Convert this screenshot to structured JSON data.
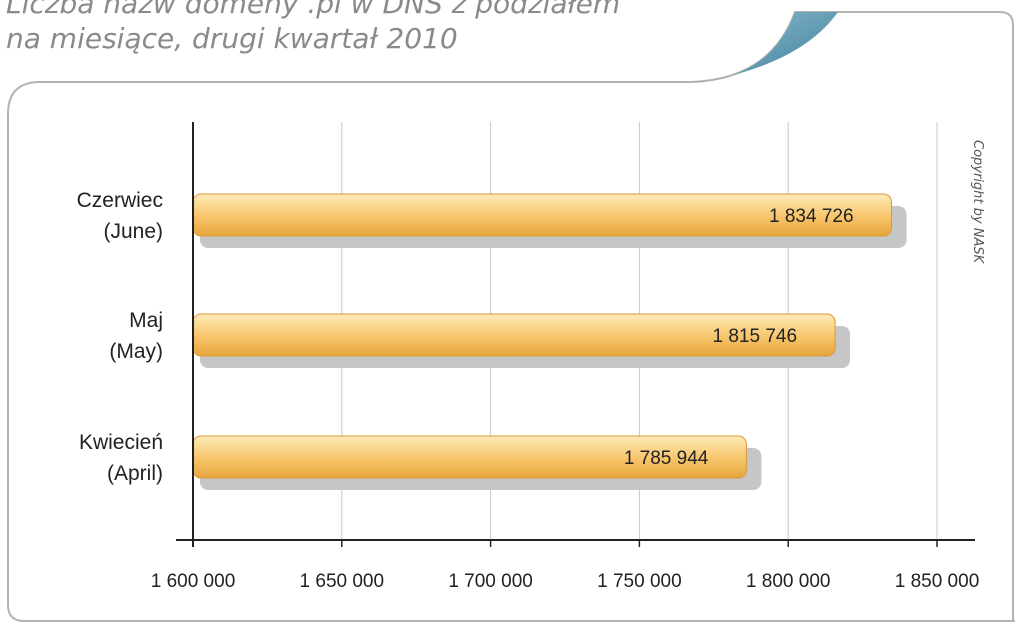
{
  "chart_data": {
    "type": "bar",
    "orientation": "horizontal",
    "title_lines": [
      "Liczba nazw domeny .pl w DNS z podziałem",
      "na miesiące, drugi kwartał 2010"
    ],
    "categories": [
      [
        "Czerwiec",
        "(June)"
      ],
      [
        "Maj",
        "(May)"
      ],
      [
        "Kwiecień",
        "(April)"
      ]
    ],
    "values": [
      1834726,
      1815746,
      1785944
    ],
    "value_labels": [
      "1 834 726",
      "1 815 746",
      "1 785 944"
    ],
    "xlim": [
      1600000,
      1850000
    ],
    "x_ticks": [
      1600000,
      1650000,
      1700000,
      1750000,
      1800000,
      1850000
    ],
    "x_tick_labels": [
      "1 600 000",
      "1 650 000",
      "1 700 000",
      "1 750 000",
      "1 800 000",
      "1 850 000"
    ],
    "grid": "vertical",
    "bar_color": "#f7c46a"
  },
  "copyright": "Copyright by NASK",
  "accent_color": "#5d9ab3"
}
